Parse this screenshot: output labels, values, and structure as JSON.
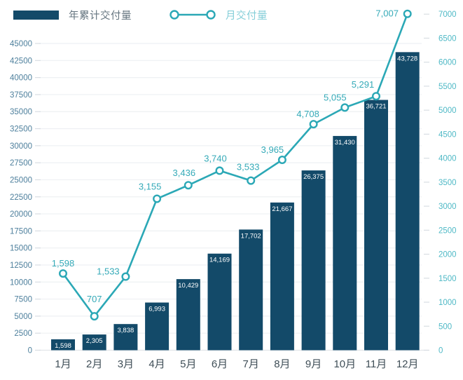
{
  "legend": {
    "cumulative_label": "年累计交付量",
    "monthly_label": "月交付量"
  },
  "colors": {
    "bar": "#134a69",
    "line": "#2ba8b6",
    "line_value_label": "#35aab8",
    "bar_value_label": "#ffffff",
    "left_axis_label": "#4d7f9c",
    "right_axis_label": "#4fb9c6",
    "x_axis_label": "#3f4e57",
    "gridline": "#eef0f3",
    "baseline": "#e2e6ea",
    "tick": "#d8dde3",
    "legend_cumulative_text": "#64747f",
    "legend_monthly_text": "#84ced8"
  },
  "chart_data": {
    "type": "bar+line",
    "title": "",
    "categories": [
      "1月",
      "2月",
      "3月",
      "4月",
      "5月",
      "6月",
      "7月",
      "8月",
      "9月",
      "10月",
      "11月",
      "12月"
    ],
    "series": [
      {
        "name": "年累计交付量",
        "chart_type": "bar",
        "axis": "left",
        "values": [
          1598,
          2305,
          3838,
          6993,
          10429,
          14169,
          17702,
          21667,
          26375,
          31430,
          36721,
          43728
        ]
      },
      {
        "name": "月交付量",
        "chart_type": "line",
        "axis": "right",
        "values": [
          1598,
          707,
          1533,
          3155,
          3436,
          3740,
          3533,
          3965,
          4708,
          5055,
          5291,
          7007
        ]
      }
    ],
    "left_axis": {
      "min": 0,
      "max": 45000,
      "step": 2500
    },
    "right_axis": {
      "min": 0,
      "max": 7000,
      "step": 500
    },
    "grid": true,
    "legend_position": "top-left",
    "value_labels": "comma-grouped"
  }
}
